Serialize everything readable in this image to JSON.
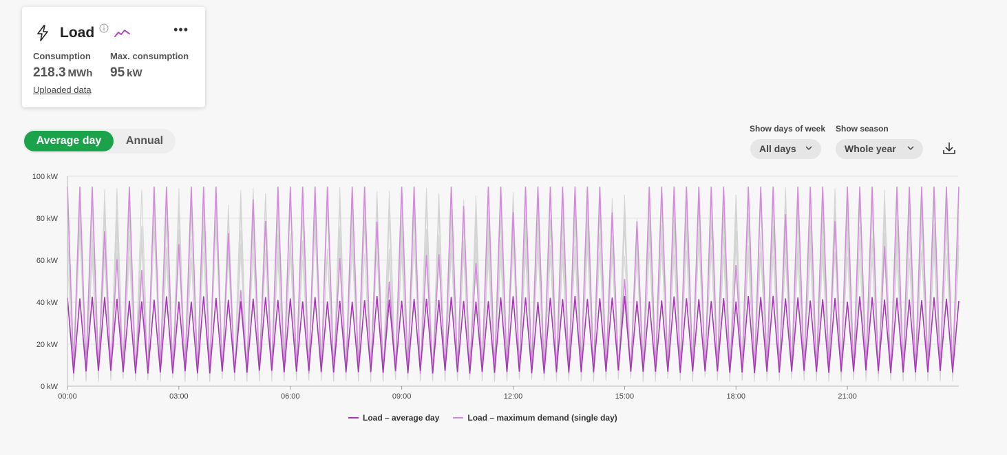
{
  "card": {
    "title": "Load",
    "icon": "bolt-icon",
    "info_icon": "info-icon",
    "trend_icon": "trend-icon",
    "more_icon": "more-icon",
    "consumption_label": "Consumption",
    "consumption_value": "218.3",
    "consumption_unit": "MWh",
    "max_label": "Max. consumption",
    "max_value": "95",
    "max_unit": "kW",
    "link_label": "Uploaded data"
  },
  "view_toggle": {
    "options": [
      "Average day",
      "Annual"
    ],
    "selected": "Average day"
  },
  "filters": {
    "days_label": "Show days of week",
    "days_value": "All days",
    "season_label": "Show season",
    "season_value": "Whole year"
  },
  "colors": {
    "accent": "#1aa34a",
    "average": "#a638b5",
    "maximum": "#cf8fd6",
    "background_lines": "#d0d0d0"
  },
  "chart_data": {
    "type": "line",
    "ylim": [
      0,
      100
    ],
    "yticks": [
      "0 kW",
      "20 kW",
      "40 kW",
      "60 kW",
      "80 kW",
      "100 kW"
    ],
    "yticks_values": [
      0,
      20,
      40,
      60,
      80,
      100
    ],
    "xticks": [
      "00:00",
      "03:00",
      "06:00",
      "09:00",
      "12:00",
      "15:00",
      "18:00",
      "21:00"
    ],
    "xticks_hours": [
      0,
      3,
      6,
      9,
      12,
      15,
      18,
      21
    ],
    "xlim_hours": [
      0,
      24
    ],
    "grid": true,
    "legend_position": "bottom",
    "series": [
      {
        "name": "Load – average day",
        "description_values": "oscillates between ~6 kW and ~43 kW every 10 minutes across the day",
        "low": 6,
        "high": 43
      },
      {
        "name": "Load – maximum demand (single day)",
        "low": 6,
        "high": 95
      }
    ]
  }
}
